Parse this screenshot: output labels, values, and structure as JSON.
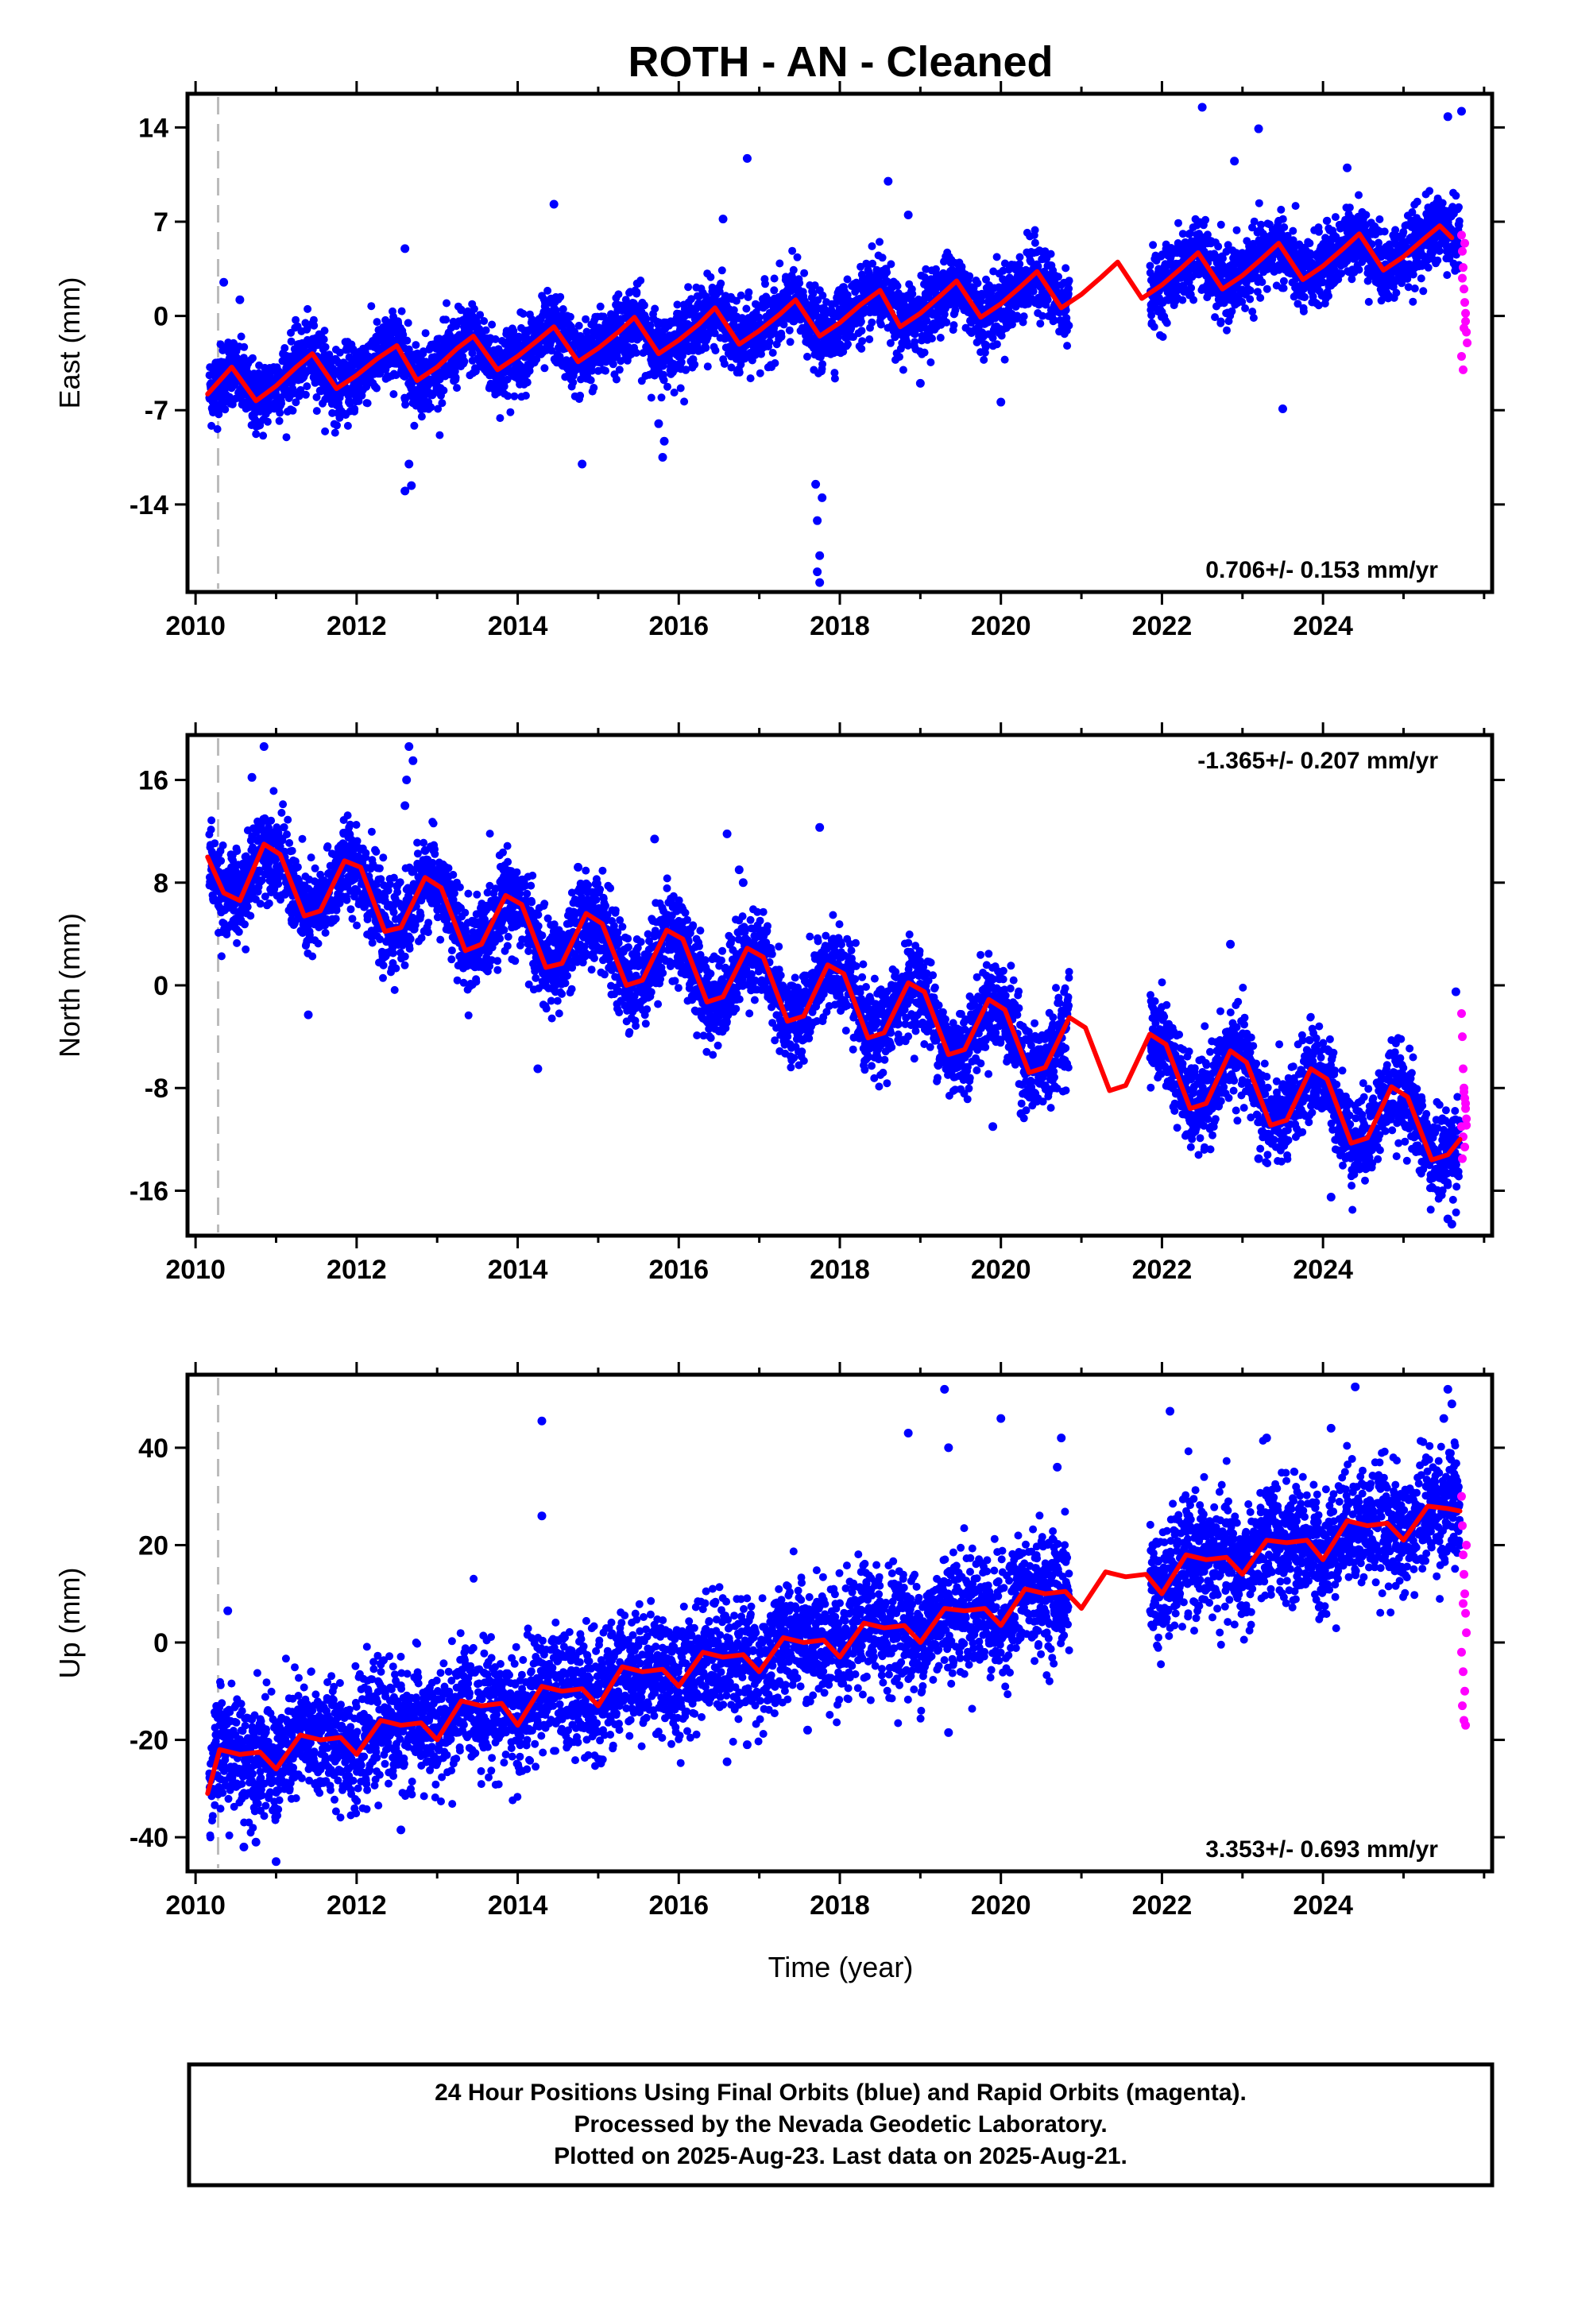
{
  "title": "ROTH  - AN - Cleaned",
  "xlabel": "Time (year)",
  "footer": [
    "24 Hour Positions Using Final Orbits (blue) and Rapid Orbits (magenta).",
    "Processed by the Nevada Geodetic Laboratory.",
    "Plotted on 2025-Aug-23. Last data on 2025-Aug-21."
  ],
  "colors": {
    "final": "#0000ff",
    "rapid": "#ff00ff",
    "model": "#ff0000",
    "event_line": "#bbbbbb"
  },
  "chart_data": [
    {
      "type": "scatter",
      "component": "east",
      "ylabel": "East (mm)",
      "rate_label": "0.706+/- 0.153 mm/yr",
      "rate_position": "bottom-right",
      "xlim": [
        2009.9,
        2026.1
      ],
      "ylim": [
        -20.5,
        16.5
      ],
      "xticks": [
        2010,
        2012,
        2014,
        2016,
        2018,
        2020,
        2022,
        2024
      ],
      "yticks": [
        14,
        7,
        0,
        -7,
        -14
      ],
      "event_line_x": 2010.28,
      "model": {
        "x": [
          2010.15,
          2010.45,
          2010.75,
          2011.0,
          2011.25,
          2011.45,
          2011.75,
          2012.0,
          2012.25,
          2012.5,
          2012.75,
          2013.0,
          2013.25,
          2013.45,
          2013.75,
          2014.0,
          2014.25,
          2014.45,
          2014.75,
          2015.0,
          2015.25,
          2015.45,
          2015.75,
          2016.0,
          2016.25,
          2016.45,
          2016.75,
          2017.0,
          2017.25,
          2017.45,
          2017.75,
          2018.0,
          2018.25,
          2018.5,
          2018.75,
          2019.0,
          2019.25,
          2019.45,
          2019.75,
          2020.0,
          2020.25,
          2020.45,
          2020.75,
          2021.0,
          2021.25,
          2021.45,
          2021.75,
          2022.0,
          2022.25,
          2022.45,
          2022.75,
          2023.0,
          2023.25,
          2023.45,
          2023.75,
          2024.0,
          2024.25,
          2024.45,
          2024.75,
          2025.0,
          2025.25,
          2025.45,
          2025.6
        ],
        "y": [
          -5.8,
          -3.8,
          -6.3,
          -5.2,
          -3.8,
          -2.8,
          -5.4,
          -4.4,
          -3.2,
          -2.2,
          -4.8,
          -3.8,
          -2.4,
          -1.5,
          -4.0,
          -3.0,
          -1.8,
          -0.8,
          -3.4,
          -2.4,
          -1.2,
          -0.1,
          -2.8,
          -1.8,
          -0.6,
          0.6,
          -2.1,
          -1.1,
          0.1,
          1.2,
          -1.5,
          -0.5,
          0.8,
          1.9,
          -0.8,
          0.2,
          1.5,
          2.6,
          -0.1,
          0.9,
          2.2,
          3.3,
          0.6,
          1.6,
          2.9,
          4.0,
          1.3,
          2.3,
          3.6,
          4.7,
          2.0,
          3.0,
          4.3,
          5.4,
          2.7,
          3.7,
          5.0,
          6.1,
          3.4,
          4.4,
          5.7,
          6.7,
          5.8
        ]
      },
      "final_gaps": [
        [
          2020.85,
          2021.85
        ]
      ],
      "final_noise_mm": 1.3,
      "final_outliers": [
        [
          2010.35,
          2.5
        ],
        [
          2010.55,
          1.2
        ],
        [
          2012.6,
          5.0
        ],
        [
          2012.65,
          -11.0
        ],
        [
          2012.68,
          -12.6
        ],
        [
          2012.6,
          -13.0
        ],
        [
          2014.45,
          8.3
        ],
        [
          2014.8,
          -11.0
        ],
        [
          2015.75,
          -8.0
        ],
        [
          2015.8,
          -10.5
        ],
        [
          2015.82,
          -9.3
        ],
        [
          2016.55,
          7.2
        ],
        [
          2016.85,
          11.7
        ],
        [
          2017.7,
          -12.5
        ],
        [
          2017.72,
          -15.2
        ],
        [
          2017.75,
          -17.8
        ],
        [
          2017.78,
          -13.5
        ],
        [
          2017.75,
          -19.8
        ],
        [
          2017.72,
          -19.0
        ],
        [
          2018.6,
          10.0
        ],
        [
          2018.85,
          7.5
        ],
        [
          2019.0,
          -5.0
        ],
        [
          2020.0,
          -6.4
        ],
        [
          2022.5,
          15.5
        ],
        [
          2022.9,
          11.5
        ],
        [
          2023.2,
          13.9
        ],
        [
          2023.5,
          -6.9
        ],
        [
          2024.3,
          11.0
        ],
        [
          2025.55,
          14.8
        ],
        [
          2025.72,
          15.2
        ]
      ],
      "rapid": {
        "x": [
          2025.72,
          2025.73,
          2025.74,
          2025.75,
          2025.76,
          2025.77,
          2025.78,
          2025.79,
          2025.72,
          2025.74,
          2025.76,
          2025.73,
          2025.75,
          2025.77
        ],
        "y": [
          6.0,
          4.8,
          3.6,
          2.0,
          1.0,
          -0.4,
          -1.2,
          -2.0,
          -3.0,
          -4.0,
          5.4,
          2.8,
          -0.9,
          0.2
        ]
      }
    },
    {
      "type": "scatter",
      "component": "north",
      "ylabel": "North (mm)",
      "rate_label": "-1.365+/- 0.207 mm/yr",
      "rate_position": "top-right",
      "xlim": [
        2009.9,
        2026.1
      ],
      "ylim": [
        -19.5,
        19.5
      ],
      "xticks": [
        2010,
        2012,
        2014,
        2016,
        2018,
        2020,
        2022,
        2024
      ],
      "yticks": [
        16,
        8,
        0,
        -8,
        -16
      ],
      "event_line_x": 2010.28,
      "model": {
        "x": [
          2010.15,
          2010.35,
          2010.55,
          2010.85,
          2011.05,
          2011.35,
          2011.55,
          2011.85,
          2012.05,
          2012.35,
          2012.55,
          2012.85,
          2013.05,
          2013.35,
          2013.55,
          2013.85,
          2014.05,
          2014.35,
          2014.55,
          2014.85,
          2015.05,
          2015.35,
          2015.55,
          2015.85,
          2016.05,
          2016.35,
          2016.55,
          2016.85,
          2017.05,
          2017.35,
          2017.55,
          2017.85,
          2018.05,
          2018.35,
          2018.55,
          2018.85,
          2019.05,
          2019.35,
          2019.55,
          2019.85,
          2020.05,
          2020.35,
          2020.55,
          2020.85,
          2021.05,
          2021.35,
          2021.55,
          2021.85,
          2022.05,
          2022.35,
          2022.55,
          2022.85,
          2023.05,
          2023.35,
          2023.55,
          2023.85,
          2024.05,
          2024.35,
          2024.55,
          2024.85,
          2025.05,
          2025.35,
          2025.55,
          2025.7
        ],
        "y": [
          10.0,
          7.2,
          6.6,
          11.0,
          10.2,
          5.4,
          5.8,
          9.7,
          9.2,
          4.2,
          4.5,
          8.4,
          7.6,
          2.7,
          3.2,
          7.0,
          6.3,
          1.4,
          1.7,
          5.6,
          4.8,
          0.0,
          0.4,
          4.3,
          3.6,
          -1.3,
          -0.9,
          2.9,
          2.2,
          -2.8,
          -2.4,
          1.6,
          0.9,
          -4.1,
          -3.7,
          0.2,
          -0.5,
          -5.4,
          -5.0,
          -1.1,
          -1.9,
          -6.8,
          -6.4,
          -2.5,
          -3.3,
          -8.2,
          -7.8,
          -3.8,
          -4.6,
          -9.6,
          -9.2,
          -5.1,
          -6.0,
          -10.9,
          -10.5,
          -6.5,
          -7.3,
          -12.3,
          -11.9,
          -7.9,
          -8.7,
          -13.6,
          -13.2,
          -12.0
        ]
      },
      "final_gaps": [
        [
          2020.85,
          2021.85
        ]
      ],
      "final_noise_mm": 1.7,
      "final_outliers": [
        [
          2010.85,
          18.6
        ],
        [
          2010.7,
          16.2
        ],
        [
          2011.4,
          -2.3
        ],
        [
          2012.65,
          18.6
        ],
        [
          2012.7,
          17.5
        ],
        [
          2012.62,
          16.0
        ],
        [
          2012.6,
          14.0
        ],
        [
          2012.85,
          10.5
        ],
        [
          2014.25,
          -6.5
        ],
        [
          2014.75,
          9.2
        ],
        [
          2015.7,
          11.4
        ],
        [
          2016.6,
          11.8
        ],
        [
          2016.75,
          9.0
        ],
        [
          2016.8,
          8.0
        ],
        [
          2017.75,
          12.3
        ],
        [
          2019.9,
          -11.0
        ],
        [
          2020.25,
          -10.0
        ],
        [
          2022.85,
          3.2
        ],
        [
          2023.2,
          -13.5
        ],
        [
          2024.1,
          -16.5
        ],
        [
          2025.55,
          -18.2
        ],
        [
          2025.6,
          -18.6
        ],
        [
          2025.65,
          -0.5
        ]
      ],
      "rapid": {
        "x": [
          2025.72,
          2025.73,
          2025.74,
          2025.75,
          2025.76,
          2025.77,
          2025.78,
          2025.72,
          2025.74,
          2025.76,
          2025.73,
          2025.75,
          2025.77,
          2025.78
        ],
        "y": [
          -2.2,
          -4.0,
          -6.5,
          -8.3,
          -8.8,
          -9.6,
          -10.4,
          -11.0,
          -11.8,
          -12.6,
          -13.5,
          -8.0,
          -9.2,
          -10.9
        ]
      }
    },
    {
      "type": "scatter",
      "component": "up",
      "ylabel": "Up (mm)",
      "rate_label": "3.353+/- 0.693 mm/yr",
      "rate_position": "bottom-right",
      "xlim": [
        2009.9,
        2026.1
      ],
      "ylim": [
        -47,
        55
      ],
      "xticks": [
        2010,
        2012,
        2014,
        2016,
        2018,
        2020,
        2022,
        2024
      ],
      "yticks": [
        40,
        20,
        0,
        -20,
        -40
      ],
      "event_line_x": 2010.28,
      "model": {
        "x": [
          2010.15,
          2010.3,
          2010.55,
          2010.8,
          2011.0,
          2011.3,
          2011.55,
          2011.8,
          2012.0,
          2012.3,
          2012.55,
          2012.8,
          2013.0,
          2013.3,
          2013.55,
          2013.8,
          2014.0,
          2014.3,
          2014.55,
          2014.8,
          2015.0,
          2015.3,
          2015.55,
          2015.8,
          2016.0,
          2016.3,
          2016.55,
          2016.8,
          2017.0,
          2017.3,
          2017.55,
          2017.8,
          2018.0,
          2018.3,
          2018.55,
          2018.8,
          2019.0,
          2019.3,
          2019.55,
          2019.8,
          2020.0,
          2020.3,
          2020.55,
          2020.8,
          2021.0,
          2021.3,
          2021.55,
          2021.8,
          2022.0,
          2022.3,
          2022.55,
          2022.8,
          2023.0,
          2023.3,
          2023.55,
          2023.8,
          2024.0,
          2024.3,
          2024.55,
          2024.8,
          2025.0,
          2025.3,
          2025.55,
          2025.7
        ],
        "y": [
          -31.0,
          -22.0,
          -23.0,
          -22.5,
          -26.0,
          -19.0,
          -20.0,
          -19.5,
          -23.0,
          -16.0,
          -17.0,
          -16.5,
          -20.0,
          -12.0,
          -13.0,
          -12.5,
          -17.0,
          -9.0,
          -10.0,
          -9.5,
          -13.0,
          -5.0,
          -6.0,
          -5.5,
          -9.0,
          -2.0,
          -3.0,
          -2.5,
          -6.0,
          1.0,
          0.0,
          0.5,
          -3.0,
          4.0,
          3.0,
          3.5,
          0.0,
          7.0,
          6.5,
          7.0,
          3.5,
          11.0,
          10.0,
          10.5,
          7.0,
          14.5,
          13.5,
          14.0,
          10.0,
          18.0,
          17.0,
          17.5,
          14.0,
          21.0,
          20.5,
          21.0,
          17.0,
          25.0,
          24.0,
          24.5,
          21.0,
          28.0,
          27.5,
          27.0
        ]
      },
      "final_gaps": [
        [
          2020.85,
          2021.85
        ]
      ],
      "final_noise_mm": 6.0,
      "final_outliers": [
        [
          2010.4,
          6.5
        ],
        [
          2010.6,
          -42.0
        ],
        [
          2010.75,
          -41.0
        ],
        [
          2011.0,
          -45.0
        ],
        [
          2012.55,
          -38.5
        ],
        [
          2014.3,
          45.5
        ],
        [
          2014.3,
          26.0
        ],
        [
          2016.6,
          -24.5
        ],
        [
          2016.85,
          -21.0
        ],
        [
          2017.6,
          -18.0
        ],
        [
          2018.85,
          43.0
        ],
        [
          2019.3,
          52.0
        ],
        [
          2019.35,
          -18.5
        ],
        [
          2019.35,
          40.0
        ],
        [
          2020.0,
          46.0
        ],
        [
          2020.7,
          36.0
        ],
        [
          2020.75,
          42.0
        ],
        [
          2022.1,
          47.5
        ],
        [
          2023.3,
          42.0
        ],
        [
          2024.4,
          52.5
        ],
        [
          2024.1,
          44.0
        ],
        [
          2025.55,
          52.0
        ],
        [
          2025.6,
          49.0
        ],
        [
          2025.5,
          46.0
        ]
      ],
      "rapid": {
        "x": [
          2025.72,
          2025.73,
          2025.74,
          2025.75,
          2025.76,
          2025.77,
          2025.78,
          2025.72,
          2025.74,
          2025.76,
          2025.73,
          2025.75,
          2025.77,
          2025.78,
          2025.74
        ],
        "y": [
          30.0,
          24.0,
          18.0,
          14.0,
          10.0,
          6.0,
          2.0,
          -2.0,
          -6.0,
          -10.0,
          -13.0,
          -16.0,
          -17.0,
          20.0,
          8.0
        ]
      }
    }
  ]
}
